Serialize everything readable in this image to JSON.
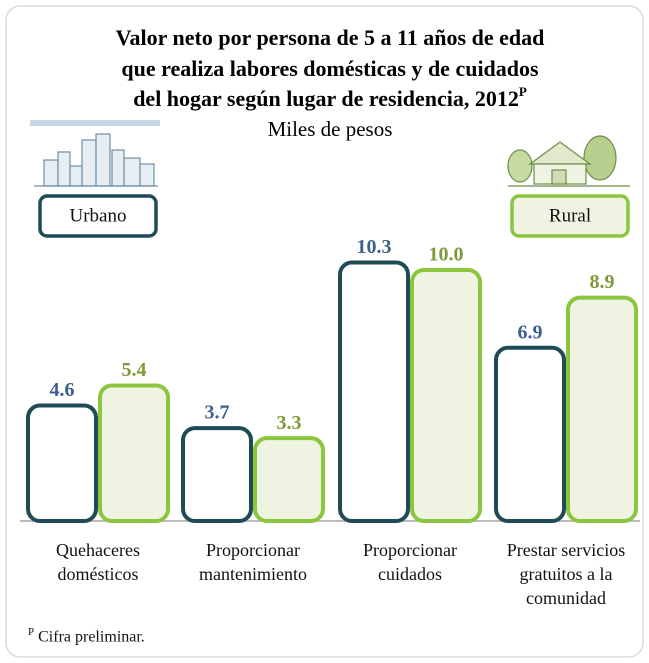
{
  "chart_data": {
    "type": "bar",
    "title_lines": [
      "Valor neto por persona de 5 a 11 años de edad",
      "que realiza labores domésticas y de cuidados",
      "del hogar según lugar de residencia, 2012"
    ],
    "title_note_mark": "P",
    "subtitle": "Miles de pesos",
    "categories": [
      "Quehaceres domésticos",
      "Proporcionar mantenimiento",
      "Proporcionar cuidados",
      "Prestar servicios gratuitos a la comunidad"
    ],
    "series": [
      {
        "name": "Urbano",
        "color": "#1f4b57",
        "fill": "#ffffff",
        "label_color": "#3c5f8d",
        "values": [
          4.6,
          3.7,
          10.3,
          6.9
        ],
        "value_labels": [
          "4.6",
          "3.7",
          "10.3",
          "6.9"
        ]
      },
      {
        "name": "Rural",
        "color": "#8cc63e",
        "fill": "#eef3e2",
        "label_color": "#7c9a36",
        "values": [
          5.4,
          3.3,
          10.0,
          8.9
        ],
        "value_labels": [
          "5.4",
          "3.3",
          "10.0",
          "8.9"
        ]
      }
    ]
  },
  "footnote": {
    "mark": "P",
    "text": "Cifra preliminar."
  }
}
